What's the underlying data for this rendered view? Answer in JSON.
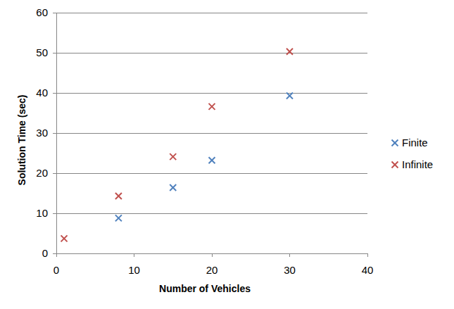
{
  "chart_data": {
    "type": "scatter",
    "x_label": "Number of Vehicles",
    "y_label": "Solution Time (sec)",
    "xlim": [
      0,
      40
    ],
    "xticks": [
      0,
      10,
      20,
      30,
      40
    ],
    "ylim": [
      0,
      60
    ],
    "yticks": [
      0,
      10,
      20,
      30,
      40,
      50,
      60
    ],
    "grid": true,
    "legend": "right",
    "marker": "x",
    "series": [
      {
        "name": "Finite",
        "color": "#4f81bd",
        "x": [
          8,
          15,
          20,
          30
        ],
        "values": [
          8.8,
          16.4,
          23.2,
          39.3
        ]
      },
      {
        "name": "Infinite",
        "color": "#c0504d",
        "x": [
          1,
          8,
          15,
          20,
          30
        ],
        "values": [
          3.7,
          14.3,
          24.1,
          36.6,
          50.3
        ]
      }
    ]
  }
}
